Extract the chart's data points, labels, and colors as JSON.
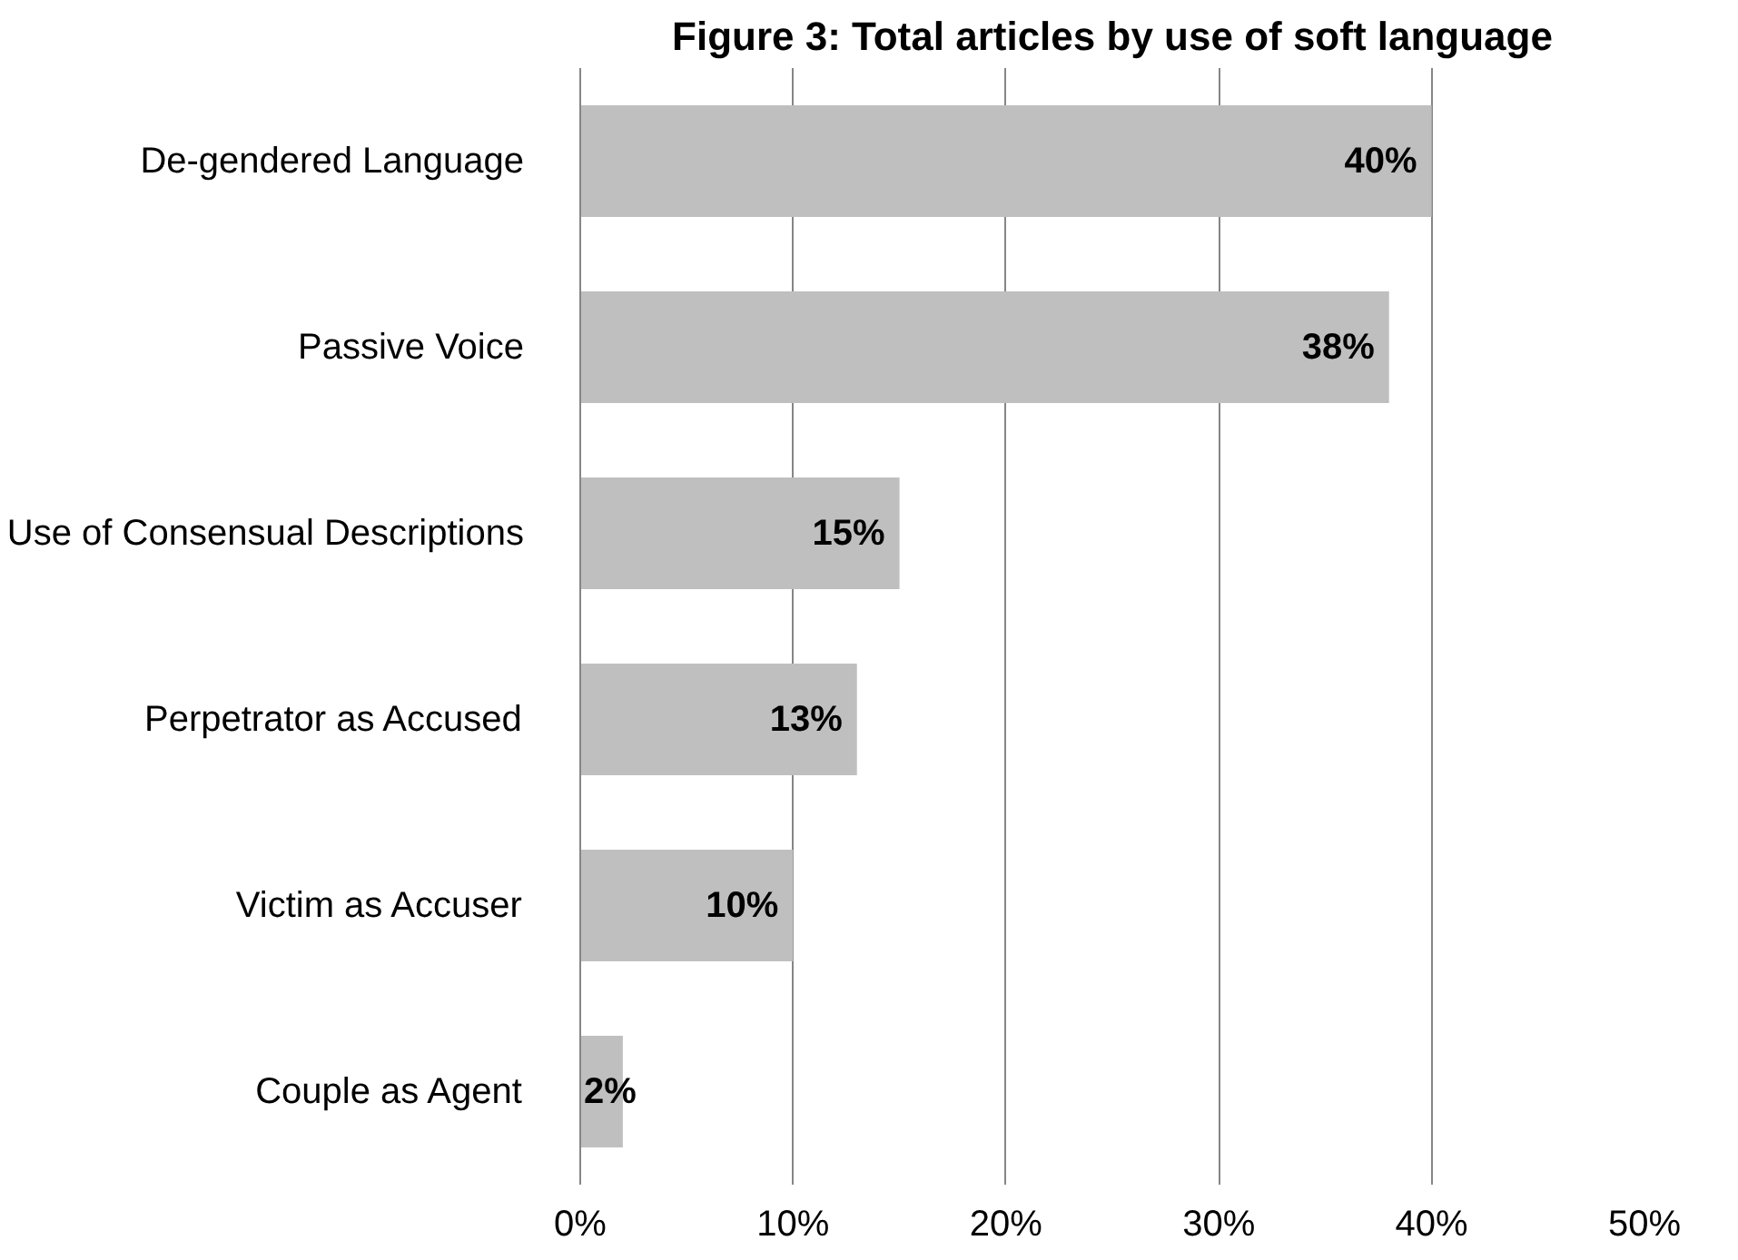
{
  "chart_data": {
    "type": "bar",
    "orientation": "horizontal",
    "title": "Figure 3: Total articles by use of soft language",
    "categories": [
      "De-gendered Language",
      "Passive Voice",
      "Use of Consensual Descriptions",
      "Perpetrator as Accused",
      "Victim as Accuser",
      "Couple as Agent"
    ],
    "values": [
      40,
      38,
      15,
      13,
      10,
      2
    ],
    "value_labels": [
      "40%",
      "38%",
      "15%",
      "13%",
      "10%",
      "2%"
    ],
    "color": "#bfbfbf",
    "xlim": [
      0,
      50
    ],
    "xticks": [
      {
        "value": 0,
        "label": "0%"
      },
      {
        "value": 10,
        "label": "10%"
      },
      {
        "value": 20,
        "label": "20%"
      },
      {
        "value": 30,
        "label": "30%"
      },
      {
        "value": 40,
        "label": "40%"
      },
      {
        "value": 50,
        "label": "50%"
      }
    ],
    "grid": "x"
  }
}
